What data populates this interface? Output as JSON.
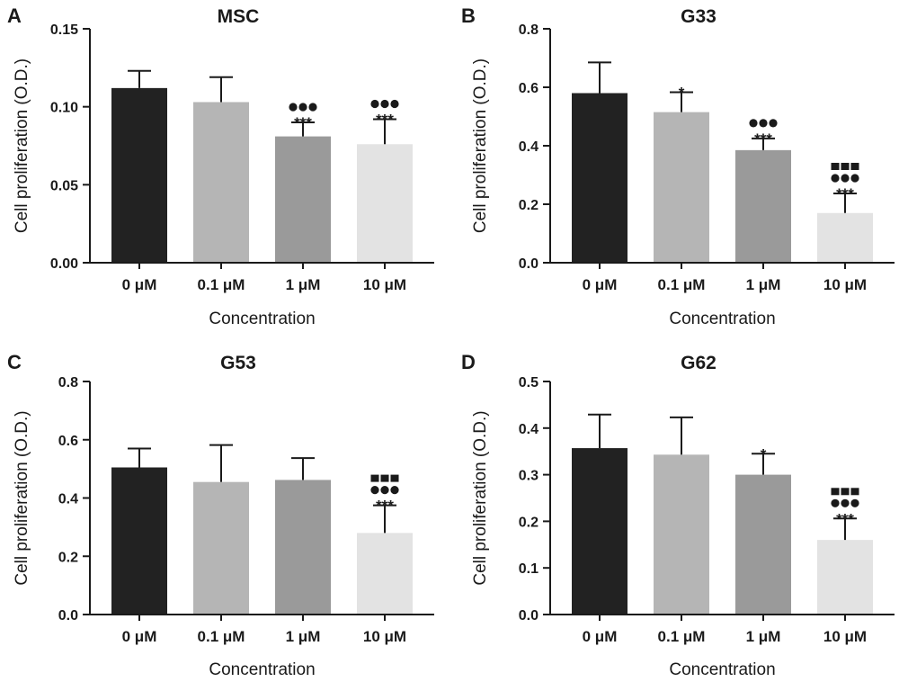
{
  "colors": {
    "bars": [
      "#222222",
      "#b5b5b5",
      "#9a9a9a",
      "#e3e3e3"
    ],
    "axis": "#1a1a1a",
    "marks": "#1a1a1a"
  },
  "chart_data": [
    {
      "panel": "A",
      "title": "MSC",
      "type": "bar",
      "xlabel": "Concentration",
      "ylabel": "Cell proliferation (O.D.)",
      "categories": [
        "0 μM",
        "0.1 μM",
        "1 μM",
        "10 μM"
      ],
      "values": [
        0.112,
        0.103,
        0.081,
        0.076
      ],
      "errors": [
        0.011,
        0.016,
        0.009,
        0.016
      ],
      "ylim": [
        0,
        0.15
      ],
      "yticks": [
        "0.00",
        "0.05",
        "0.10",
        "0.15"
      ],
      "significance": [
        {
          "stars": "",
          "circles": 0,
          "squares": 0
        },
        {
          "stars": "",
          "circles": 0,
          "squares": 0
        },
        {
          "stars": "***",
          "circles": 3,
          "squares": 0
        },
        {
          "stars": "***",
          "circles": 3,
          "squares": 0
        }
      ]
    },
    {
      "panel": "B",
      "title": "G33",
      "type": "bar",
      "xlabel": "Concentration",
      "ylabel": "Cell proliferation (O.D.)",
      "categories": [
        "0 μM",
        "0.1 μM",
        "1 μM",
        "10 μM"
      ],
      "values": [
        0.58,
        0.515,
        0.385,
        0.17
      ],
      "errors": [
        0.105,
        0.068,
        0.04,
        0.067
      ],
      "ylim": [
        0,
        0.8
      ],
      "yticks": [
        "0.0",
        "0.2",
        "0.4",
        "0.6",
        "0.8"
      ],
      "significance": [
        {
          "stars": "",
          "circles": 0,
          "squares": 0
        },
        {
          "stars": "*",
          "circles": 0,
          "squares": 0
        },
        {
          "stars": "***",
          "circles": 3,
          "squares": 0
        },
        {
          "stars": "***",
          "circles": 3,
          "squares": 3
        }
      ]
    },
    {
      "panel": "C",
      "title": "G53",
      "type": "bar",
      "xlabel": "Concentration",
      "ylabel": "Cell proliferation (O.D.)",
      "categories": [
        "0 μM",
        "0.1 μM",
        "1 μM",
        "10 μM"
      ],
      "values": [
        0.505,
        0.455,
        0.462,
        0.28
      ],
      "errors": [
        0.065,
        0.127,
        0.075,
        0.095
      ],
      "ylim": [
        0,
        0.8
      ],
      "yticks": [
        "0.0",
        "0.2",
        "0.4",
        "0.6",
        "0.8"
      ],
      "significance": [
        {
          "stars": "",
          "circles": 0,
          "squares": 0
        },
        {
          "stars": "",
          "circles": 0,
          "squares": 0
        },
        {
          "stars": "",
          "circles": 0,
          "squares": 0
        },
        {
          "stars": "***",
          "circles": 3,
          "squares": 3
        }
      ]
    },
    {
      "panel": "D",
      "title": "G62",
      "type": "bar",
      "xlabel": "Concentration",
      "ylabel": "Cell proliferation (O.D.)",
      "categories": [
        "0 μM",
        "0.1 μM",
        "1 μM",
        "10 μM"
      ],
      "values": [
        0.357,
        0.343,
        0.3,
        0.16
      ],
      "errors": [
        0.072,
        0.08,
        0.045,
        0.046
      ],
      "ylim": [
        0,
        0.5
      ],
      "yticks": [
        "0.0",
        "0.1",
        "0.2",
        "0.3",
        "0.4",
        "0.5"
      ],
      "significance": [
        {
          "stars": "",
          "circles": 0,
          "squares": 0
        },
        {
          "stars": "",
          "circles": 0,
          "squares": 0
        },
        {
          "stars": "*",
          "circles": 0,
          "squares": 0
        },
        {
          "stars": "***",
          "circles": 3,
          "squares": 3
        }
      ]
    }
  ]
}
